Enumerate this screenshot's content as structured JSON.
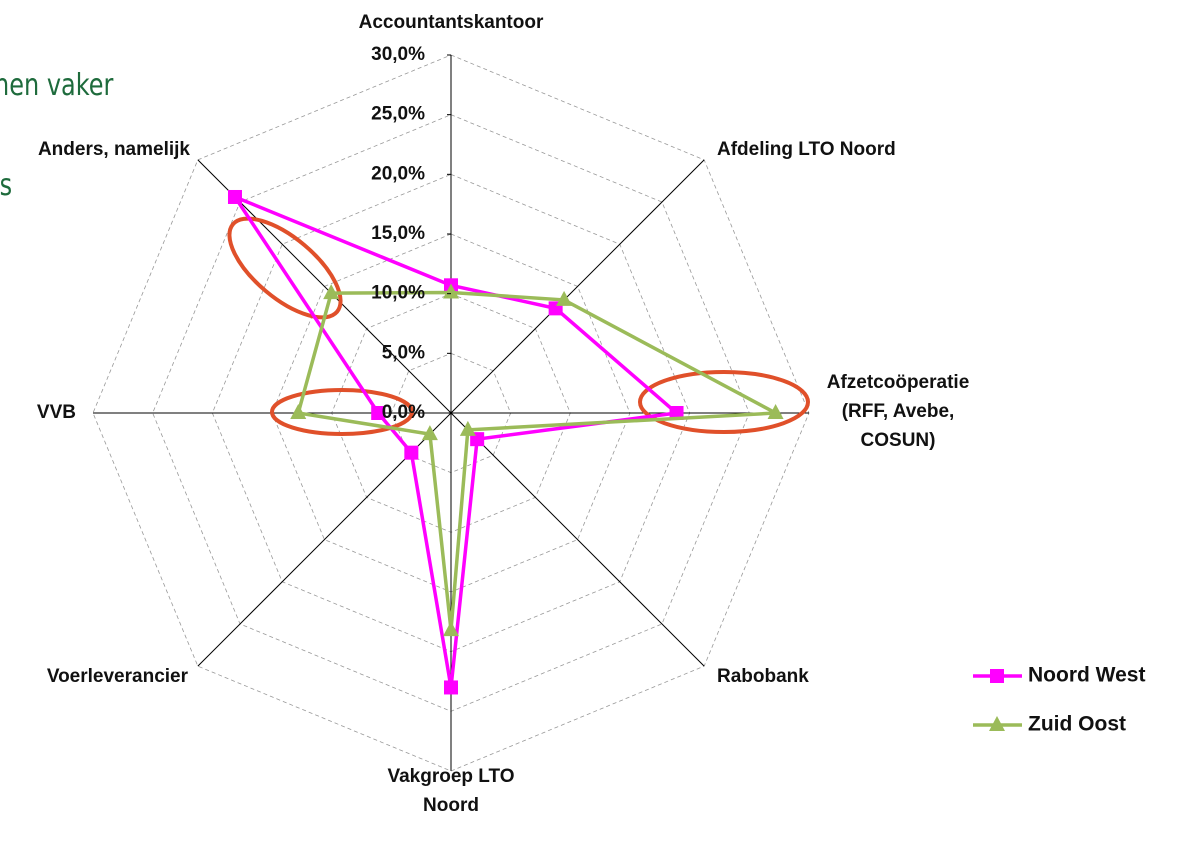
{
  "chart_data": {
    "type": "radar",
    "annotations": [
      "hen vaker",
      "’s"
    ],
    "categories": [
      "Accountantskantoor",
      "Afdeling LTO Noord",
      "Afzetcoöperatie\n(RFF, Avebe,\nCOSUN)",
      "Rabobank",
      "Vakgroep LTO\nNoord",
      "Voerleverancier",
      "VVB",
      "Anders, namelijk"
    ],
    "series": [
      {
        "name": "Noord West",
        "color": "#ff00ff",
        "marker": "square",
        "values": [
          10.7,
          12.4,
          18.9,
          3.1,
          23.0,
          4.7,
          6.1,
          25.6
        ]
      },
      {
        "name": "Zuid Oost",
        "color": "#9bbb59",
        "marker": "triangle",
        "values": [
          10.1,
          13.4,
          27.2,
          2.0,
          18.2,
          2.5,
          12.8,
          14.2
        ]
      }
    ],
    "ylim": [
      0,
      30
    ],
    "yticks": [
      {
        "value": 0,
        "label": "0,0%"
      },
      {
        "value": 5,
        "label": "5,0%"
      },
      {
        "value": 10,
        "label": "10,0%"
      },
      {
        "value": 15,
        "label": "15,0%"
      },
      {
        "value": 20,
        "label": "20,0%"
      },
      {
        "value": 25,
        "label": "25,0%"
      },
      {
        "value": 30,
        "label": "30,0%"
      }
    ],
    "grid": true,
    "legend": "bottom-right"
  }
}
